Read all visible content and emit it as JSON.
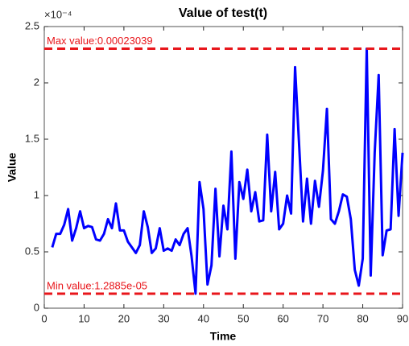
{
  "chart_data": {
    "type": "line",
    "title": "Value of test(t)",
    "x_label": "Time",
    "y_label": "Value",
    "y_exponent_label": "×10⁻⁴",
    "x": [
      2,
      3,
      4,
      5,
      6,
      7,
      8,
      9,
      10,
      11,
      12,
      13,
      14,
      15,
      16,
      17,
      18,
      19,
      20,
      21,
      22,
      23,
      24,
      25,
      26,
      27,
      28,
      29,
      30,
      31,
      32,
      33,
      34,
      35,
      36,
      37,
      38,
      39,
      40,
      41,
      42,
      43,
      44,
      45,
      46,
      47,
      48,
      49,
      50,
      51,
      52,
      53,
      54,
      55,
      56,
      57,
      58,
      59,
      60,
      61,
      62,
      63,
      64,
      65,
      66,
      67,
      68,
      69,
      70,
      71,
      72,
      73,
      74,
      75,
      76,
      77,
      78,
      79,
      80,
      81,
      82,
      83,
      84,
      85,
      86,
      87,
      88,
      89,
      90
    ],
    "series": [
      {
        "name": "test(t)",
        "color": "#0000ff",
        "values": [
          0.54,
          0.66,
          0.66,
          0.74,
          0.88,
          0.6,
          0.71,
          0.86,
          0.71,
          0.73,
          0.72,
          0.61,
          0.6,
          0.66,
          0.79,
          0.71,
          0.93,
          0.69,
          0.69,
          0.59,
          0.54,
          0.49,
          0.56,
          0.86,
          0.72,
          0.49,
          0.53,
          0.71,
          0.51,
          0.53,
          0.51,
          0.61,
          0.56,
          0.66,
          0.71,
          0.46,
          0.12885,
          1.12,
          0.88,
          0.21,
          0.38,
          1.06,
          0.46,
          0.91,
          0.7,
          1.39,
          0.44,
          1.12,
          0.97,
          1.23,
          0.86,
          1.03,
          0.77,
          0.78,
          1.54,
          0.86,
          1.21,
          0.7,
          0.75,
          1.0,
          0.84,
          2.14,
          1.46,
          0.77,
          1.15,
          0.75,
          1.13,
          0.9,
          1.22,
          1.77,
          0.79,
          0.75,
          0.86,
          1.01,
          0.99,
          0.79,
          0.34,
          0.2,
          0.44,
          2.3039,
          0.29,
          1.38,
          2.07,
          0.47,
          0.69,
          0.7,
          1.59,
          0.82,
          1.38
        ]
      }
    ],
    "reference_lines": [
      {
        "value": 2.3039,
        "label": "Max value:0.00023039",
        "color": "#e8161b"
      },
      {
        "value": 0.12885,
        "label": "Min value:1.2885e-05",
        "color": "#e8161b"
      }
    ],
    "xlim": [
      0,
      90
    ],
    "xticks": [
      0,
      10,
      20,
      30,
      40,
      50,
      60,
      70,
      80,
      90
    ],
    "ylim": [
      0,
      2.5
    ],
    "yticks": [
      0,
      0.5,
      1,
      1.5,
      2,
      2.5
    ],
    "grid": false
  }
}
